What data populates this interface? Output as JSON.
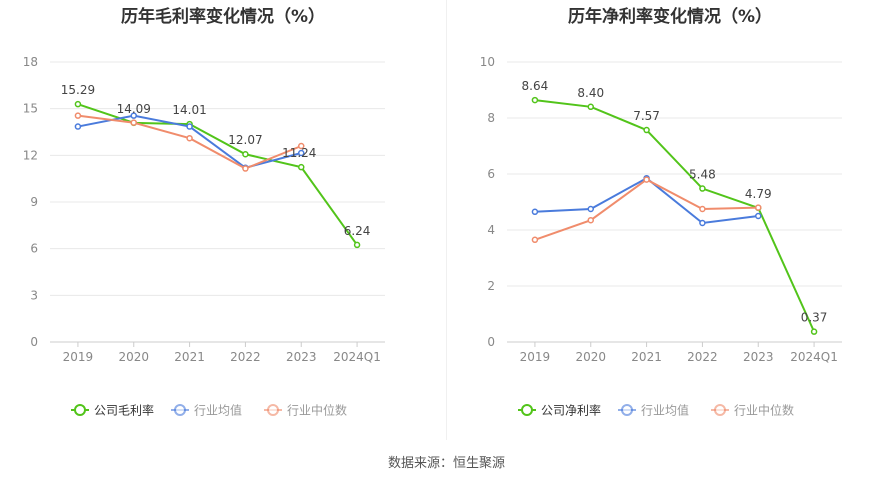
{
  "chart_data": [
    {
      "type": "line",
      "title": "历年毛利率变化情况（%）",
      "categories": [
        "2019",
        "2020",
        "2021",
        "2022",
        "2023",
        "2024Q1"
      ],
      "ylim": [
        0,
        18
      ],
      "yticks": [
        "0",
        "3",
        "6",
        "9",
        "12",
        "15",
        "18"
      ],
      "grid": true,
      "legend_position": "bottom",
      "series": [
        {
          "name": "公司毛利率",
          "color": "#52c41a",
          "values": [
            15.29,
            14.09,
            14.01,
            12.07,
            11.24,
            6.24
          ],
          "labels": [
            "15.29",
            "14.09",
            "14.01",
            "12.07",
            "11.24",
            "6.24"
          ]
        },
        {
          "name": "行业均值",
          "color": "#4a7bdc",
          "values": [
            13.85,
            14.55,
            13.85,
            11.2,
            12.15,
            null
          ]
        },
        {
          "name": "行业中位数",
          "color": "#f08c6c",
          "values": [
            14.55,
            14.1,
            13.1,
            11.15,
            12.6,
            null
          ]
        }
      ]
    },
    {
      "type": "line",
      "title": "历年净利率变化情况（%）",
      "categories": [
        "2019",
        "2020",
        "2021",
        "2022",
        "2023",
        "2024Q1"
      ],
      "ylim": [
        0,
        10
      ],
      "yticks": [
        "0",
        "2",
        "4",
        "6",
        "8",
        "10"
      ],
      "grid": true,
      "legend_position": "bottom",
      "series": [
        {
          "name": "公司净利率",
          "color": "#52c41a",
          "values": [
            8.64,
            8.4,
            7.57,
            5.48,
            4.79,
            0.37
          ],
          "labels": [
            "8.64",
            "8.40",
            "7.57",
            "5.48",
            "4.79",
            "0.37"
          ]
        },
        {
          "name": "行业均值",
          "color": "#4a7bdc",
          "values": [
            4.65,
            4.75,
            5.85,
            4.25,
            4.5,
            null
          ]
        },
        {
          "name": "行业中位数",
          "color": "#f08c6c",
          "values": [
            3.65,
            4.35,
            5.8,
            4.75,
            4.8,
            null
          ]
        }
      ]
    }
  ],
  "footer": {
    "source": "数据来源：恒生聚源"
  }
}
